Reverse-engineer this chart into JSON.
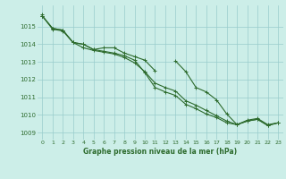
{
  "x": [
    0,
    1,
    2,
    3,
    4,
    5,
    6,
    7,
    8,
    9,
    10,
    11,
    12,
    13,
    14,
    15,
    16,
    17,
    18,
    19,
    20,
    21,
    22,
    23
  ],
  "line1": [
    1015.6,
    1014.9,
    1014.8,
    1014.1,
    1014.0,
    1013.7,
    1013.8,
    1013.8,
    1013.5,
    1013.3,
    1013.1,
    1012.5,
    null,
    null,
    null,
    null,
    null,
    null,
    null,
    null,
    null,
    null,
    null,
    null
  ],
  "line2": [
    1015.6,
    1014.9,
    1014.8,
    1014.1,
    1014.0,
    1013.7,
    1013.6,
    1013.5,
    1013.35,
    1013.1,
    1012.4,
    1011.55,
    1011.3,
    1011.1,
    1010.6,
    1010.35,
    1010.05,
    1009.85,
    1009.55,
    1009.45,
    1009.7,
    1009.8,
    1009.45,
    1009.55
  ],
  "line3": [
    1015.6,
    1014.85,
    1014.75,
    1014.1,
    1013.8,
    1013.65,
    1013.55,
    1013.45,
    1013.25,
    1012.95,
    1012.45,
    1011.8,
    1011.55,
    1011.35,
    1010.8,
    1010.55,
    1010.25,
    1009.95,
    1009.65,
    1009.45,
    1009.65,
    1009.75,
    1009.4,
    1009.55
  ],
  "line4": [
    1015.7,
    null,
    null,
    null,
    null,
    null,
    null,
    null,
    null,
    null,
    null,
    null,
    null,
    1013.05,
    1012.45,
    1011.55,
    1011.3,
    1010.85,
    1010.05,
    1009.45,
    1009.65,
    1009.75,
    1009.4,
    1009.55
  ],
  "bg_color": "#cceee8",
  "grid_color": "#99cccc",
  "line_color": "#2d6b2d",
  "ylabel_values": [
    1009,
    1010,
    1011,
    1012,
    1013,
    1014,
    1015
  ],
  "xlabel_label": "Graphe pression niveau de la mer (hPa)",
  "ylim": [
    1008.6,
    1016.2
  ],
  "xlim": [
    -0.5,
    23.5
  ]
}
